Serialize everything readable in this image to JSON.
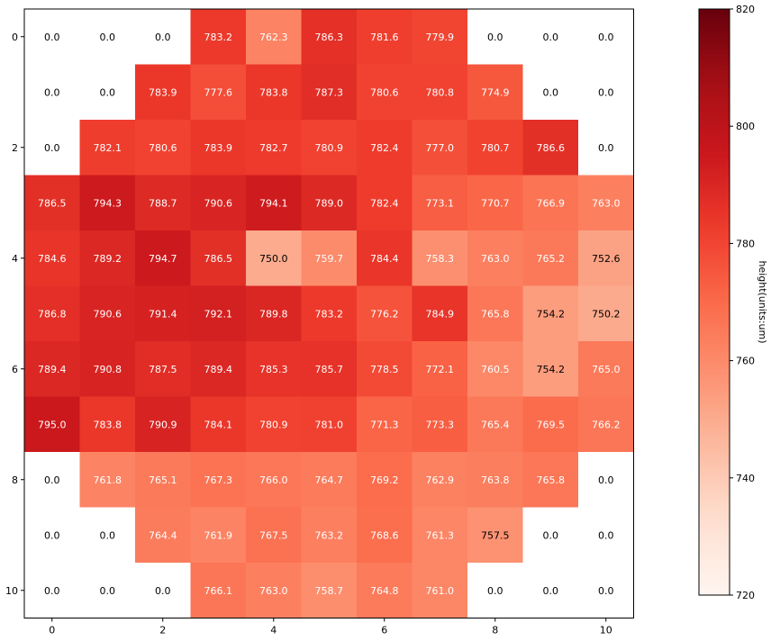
{
  "chart_data": {
    "type": "heatmap",
    "title": "",
    "xlabel": "",
    "ylabel": "",
    "x_ticks": [
      "0",
      "2",
      "4",
      "6",
      "8",
      "10"
    ],
    "y_ticks": [
      "0",
      "2",
      "4",
      "6",
      "8",
      "10"
    ],
    "x_tick_values": [
      0,
      2,
      4,
      6,
      8,
      10
    ],
    "y_tick_values": [
      0,
      2,
      4,
      6,
      8,
      10
    ],
    "rows": 11,
    "cols": 11,
    "values": [
      [
        0.0,
        0.0,
        0.0,
        783.2,
        762.3,
        786.3,
        781.6,
        779.9,
        0.0,
        0.0,
        0.0
      ],
      [
        0.0,
        0.0,
        783.9,
        777.6,
        783.8,
        787.3,
        780.6,
        780.8,
        774.9,
        0.0,
        0.0
      ],
      [
        0.0,
        782.1,
        780.6,
        783.9,
        782.7,
        780.9,
        782.4,
        777.0,
        780.7,
        786.6,
        0.0
      ],
      [
        786.5,
        794.3,
        788.7,
        790.6,
        794.1,
        789.0,
        782.4,
        773.1,
        770.7,
        766.9,
        763.0
      ],
      [
        784.6,
        789.2,
        794.7,
        786.5,
        750.0,
        759.7,
        784.4,
        758.3,
        763.0,
        765.2,
        752.6
      ],
      [
        786.8,
        790.6,
        791.4,
        792.1,
        789.8,
        783.2,
        776.2,
        784.9,
        765.8,
        754.2,
        750.2
      ],
      [
        789.4,
        790.8,
        787.5,
        789.4,
        785.3,
        785.7,
        778.5,
        772.1,
        760.5,
        754.2,
        765.0
      ],
      [
        795.0,
        783.8,
        790.9,
        784.1,
        780.9,
        781.0,
        771.3,
        773.3,
        765.4,
        769.5,
        766.2
      ],
      [
        0.0,
        761.8,
        765.1,
        767.3,
        766.0,
        764.7,
        769.2,
        762.9,
        763.8,
        765.8,
        0.0
      ],
      [
        0.0,
        0.0,
        764.4,
        761.9,
        767.5,
        763.2,
        768.6,
        761.3,
        757.5,
        0.0,
        0.0
      ],
      [
        0.0,
        0.0,
        0.0,
        766.1,
        763.0,
        758.7,
        764.8,
        761.0,
        0.0,
        0.0,
        0.0
      ]
    ],
    "colormap": "Reds",
    "vmin": 720,
    "vmax": 820,
    "colorbar": {
      "label": "height(units:um)",
      "ticks": [
        "720",
        "740",
        "760",
        "780",
        "800",
        "820"
      ],
      "tick_values": [
        720,
        740,
        760,
        780,
        800,
        820
      ]
    },
    "grid": false
  }
}
